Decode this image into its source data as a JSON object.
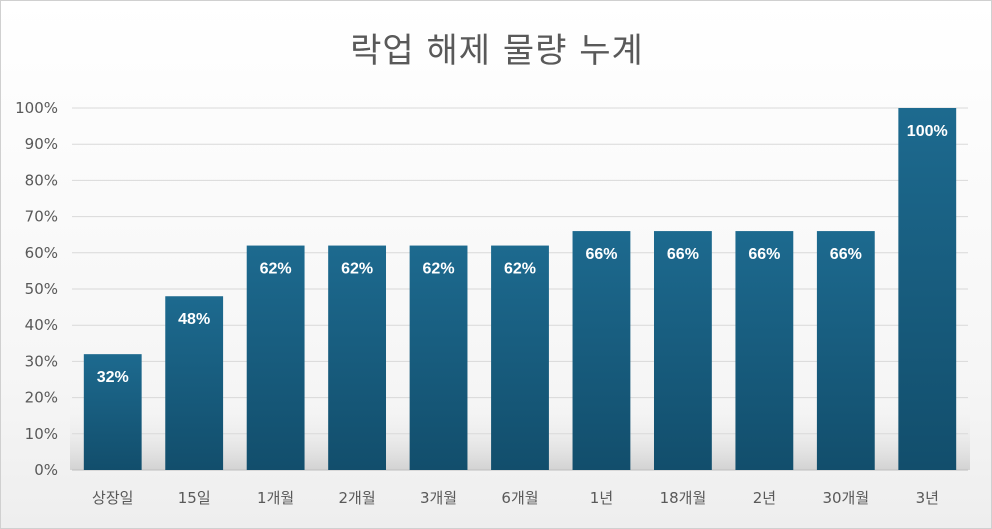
{
  "chart_data": {
    "type": "bar",
    "title": "락업 해제 물량 누계",
    "categories": [
      "상장일",
      "15일",
      "1개월",
      "2개월",
      "3개월",
      "6개월",
      "1년",
      "18개월",
      "2년",
      "30개월",
      "3년"
    ],
    "values": [
      32,
      48,
      62,
      62,
      62,
      62,
      66,
      66,
      66,
      66,
      100
    ],
    "data_labels": [
      "32%",
      "48%",
      "62%",
      "62%",
      "62%",
      "62%",
      "66%",
      "66%",
      "66%",
      "66%",
      "100%"
    ],
    "y_ticks": [
      "0%",
      "10%",
      "20%",
      "30%",
      "40%",
      "50%",
      "60%",
      "70%",
      "80%",
      "90%",
      "100%"
    ],
    "ylim": [
      0,
      100
    ],
    "xlabel": "",
    "ylabel": "",
    "grid": true,
    "legend": "none",
    "bar_color": "#1b5f82"
  }
}
